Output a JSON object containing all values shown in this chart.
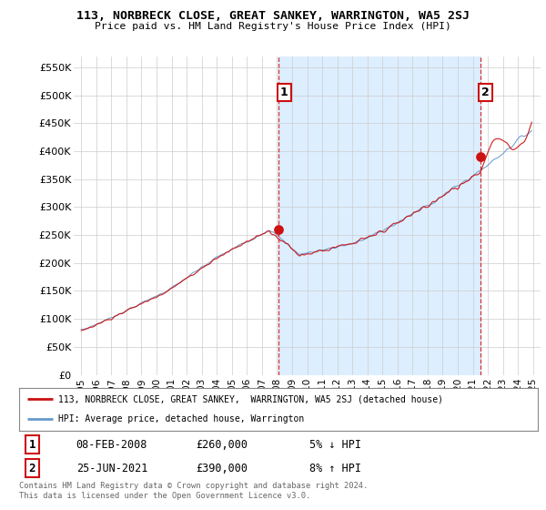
{
  "title": "113, NORBRECK CLOSE, GREAT SANKEY, WARRINGTON, WA5 2SJ",
  "subtitle": "Price paid vs. HM Land Registry's House Price Index (HPI)",
  "ylim": [
    0,
    570000
  ],
  "yticks": [
    0,
    50000,
    100000,
    150000,
    200000,
    250000,
    300000,
    350000,
    400000,
    450000,
    500000,
    550000
  ],
  "ytick_labels": [
    "£0",
    "£50K",
    "£100K",
    "£150K",
    "£200K",
    "£250K",
    "£300K",
    "£350K",
    "£400K",
    "£450K",
    "£500K",
    "£550K"
  ],
  "hpi_color": "#6699cc",
  "price_color": "#cc1111",
  "shade_color": "#ddeeff",
  "annotation1_label": "1",
  "annotation2_label": "2",
  "sale1_yr_float": 2008.096,
  "sale1_price": 260000,
  "sale2_yr_float": 2021.484,
  "sale2_price": 390000,
  "sale1_date_str": "08-FEB-2008",
  "sale1_price_str": "£260,000",
  "sale1_pct_str": "5% ↓ HPI",
  "sale2_date_str": "25-JUN-2021",
  "sale2_price_str": "£390,000",
  "sale2_pct_str": "8% ↑ HPI",
  "legend_line1": "113, NORBRECK CLOSE, GREAT SANKEY,  WARRINGTON, WA5 2SJ (detached house)",
  "legend_line2": "HPI: Average price, detached house, Warrington",
  "footnote": "Contains HM Land Registry data © Crown copyright and database right 2024.\nThis data is licensed under the Open Government Licence v3.0.",
  "background_color": "#ffffff",
  "grid_color": "#cccccc",
  "xlim_left": 1994.5,
  "xlim_right": 2025.5
}
